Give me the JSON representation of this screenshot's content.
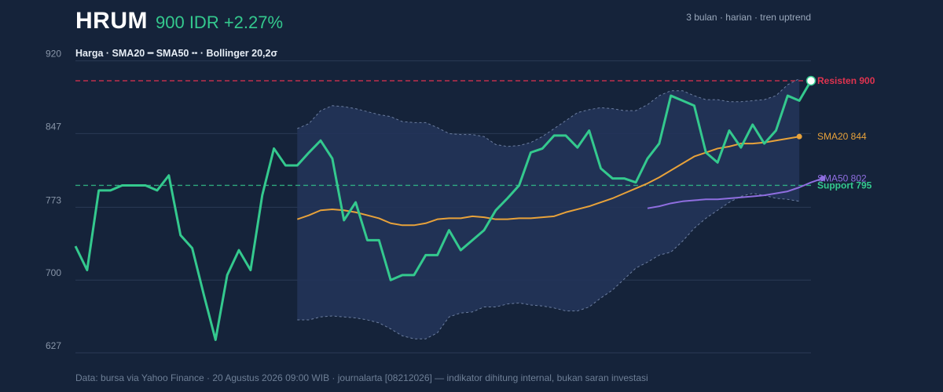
{
  "header": {
    "ticker": "HRUM",
    "price_change": "900 IDR +2.27%",
    "meta": "3 bulan · harian · tren uptrend",
    "legend": "Harga · SMA20 ━ SMA50 ╍ · Bollinger 20,2σ"
  },
  "footer": "Data: bursa via Yahoo Finance · 20 Agustus 2026 09:00 WIB · journalarta [08212026] — indikator dihitung internal, bukan saran investasi",
  "colors": {
    "price": "#34c98e",
    "sma20": "#e8a23a",
    "sma50": "#8f6ee0",
    "resistance": "#e0334f",
    "support": "#34c98e",
    "band_fill": "#23355a",
    "band_line": "#6c7ea0"
  },
  "chart_data": {
    "type": "line",
    "ylim": [
      620,
      925
    ],
    "y_ticks": [
      920,
      847,
      773,
      700,
      627
    ],
    "grid": true,
    "x_count": 64,
    "series": [
      {
        "name": "Harga",
        "start_index": 0,
        "values": [
          734,
          710,
          790,
          790,
          795,
          795,
          795,
          790,
          805,
          745,
          732,
          685,
          640,
          705,
          730,
          710,
          785,
          832,
          815,
          815,
          828,
          840,
          822,
          760,
          778,
          740,
          740,
          700,
          705,
          705,
          725,
          725,
          750,
          730,
          740,
          750,
          770,
          782,
          795,
          828,
          832,
          845,
          845,
          833,
          850,
          812,
          802,
          802,
          798,
          822,
          837,
          885,
          880,
          875,
          828,
          818,
          850,
          833,
          856,
          837,
          850,
          885,
          880,
          900
        ]
      },
      {
        "name": "SMA20",
        "start_index": 19,
        "values": [
          761,
          765,
          770,
          771,
          770,
          768,
          765,
          762,
          757,
          755,
          755,
          757,
          761,
          762,
          762,
          764,
          763,
          761,
          761,
          762,
          762,
          763,
          764,
          768,
          771,
          774,
          778,
          782,
          787,
          792,
          797,
          803,
          810,
          817,
          824,
          828,
          832,
          834,
          837,
          837,
          838,
          840,
          842,
          844
        ]
      },
      {
        "name": "SMA50",
        "start_index": 49,
        "values": [
          772,
          774,
          777,
          779,
          780,
          781,
          781,
          782,
          783,
          784,
          785,
          787,
          789,
          793,
          798,
          802
        ]
      },
      {
        "name": "Bollinger atas",
        "start_index": 19,
        "values": [
          852,
          857,
          870,
          875,
          874,
          872,
          869,
          866,
          864,
          859,
          858,
          858,
          853,
          847,
          846,
          846,
          844,
          836,
          834,
          835,
          838,
          844,
          852,
          860,
          868,
          871,
          873,
          872,
          870,
          870,
          876,
          885,
          890,
          890,
          885,
          881,
          881,
          879,
          879,
          880,
          881,
          885,
          896,
          902
        ]
      },
      {
        "name": "Bollinger bawah",
        "start_index": 19,
        "values": [
          660,
          660,
          663,
          664,
          663,
          662,
          660,
          657,
          651,
          644,
          641,
          641,
          647,
          663,
          667,
          668,
          673,
          673,
          676,
          677,
          675,
          674,
          672,
          669,
          669,
          673,
          682,
          690,
          701,
          712,
          718,
          725,
          728,
          739,
          752,
          762,
          770,
          778,
          784,
          787,
          785,
          782,
          781,
          779
        ]
      }
    ],
    "end_labels": {
      "resistance": "Resisten 900",
      "sma20": "SMA20 844",
      "sma50": "SMA50 802",
      "support": "Support 795"
    },
    "levels": {
      "resistance": 900,
      "support": 795
    }
  }
}
